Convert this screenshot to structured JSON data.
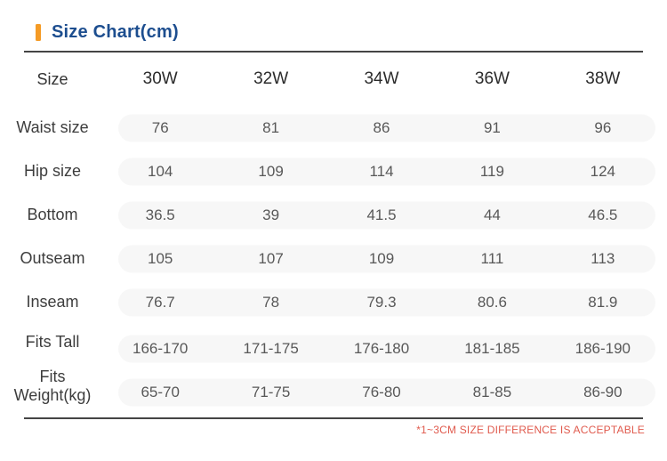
{
  "header": {
    "title": "Size Chart(cm)",
    "accent_color": "#f59b25",
    "title_color": "#1d4e8f"
  },
  "table": {
    "label_header": "Size",
    "columns": [
      "30W",
      "32W",
      "34W",
      "36W",
      "38W"
    ],
    "rows": [
      {
        "label": "Waist size",
        "values": [
          "76",
          "81",
          "86",
          "91",
          "96"
        ]
      },
      {
        "label": "Hip size",
        "values": [
          "104",
          "109",
          "114",
          "119",
          "124"
        ]
      },
      {
        "label": "Bottom",
        "values": [
          "36.5",
          "39",
          "41.5",
          "44",
          "46.5"
        ]
      },
      {
        "label": "Outseam",
        "values": [
          "105",
          "107",
          "109",
          "111",
          "113"
        ]
      },
      {
        "label": "Inseam",
        "values": [
          "76.7",
          "78",
          "79.3",
          "80.6",
          "81.9"
        ]
      },
      {
        "label": "Fits Tall",
        "values": [
          "166-170",
          "171-175",
          "176-180",
          "181-185",
          "186-190"
        ]
      },
      {
        "label": "Fits Weight(kg)",
        "values": [
          "65-70",
          "71-75",
          "76-80",
          "81-85",
          "86-90"
        ]
      }
    ],
    "row_pill_color": "#f7f7f7"
  },
  "footer": {
    "note": "*1~3CM SIZE DIFFERENCE IS ACCEPTABLE",
    "note_color": "#e05a4d"
  }
}
